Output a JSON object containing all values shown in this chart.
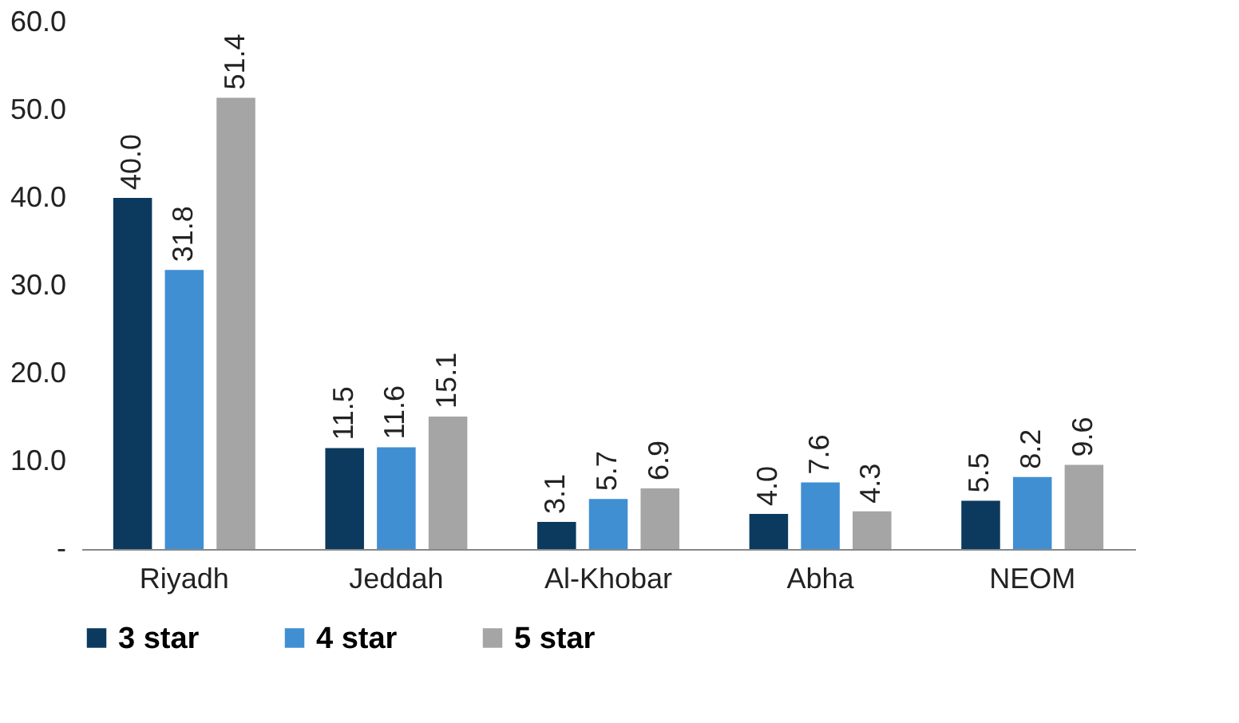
{
  "chart_data": {
    "type": "bar",
    "categories": [
      "Riyadh",
      "Jeddah",
      "Al-Khobar",
      "Abha",
      "NEOM"
    ],
    "series": [
      {
        "name": "3 star",
        "color": "#0b3a5e",
        "values": [
          40.0,
          11.5,
          3.1,
          4.0,
          5.5
        ]
      },
      {
        "name": "4 star",
        "color": "#418fd3",
        "values": [
          31.8,
          11.6,
          5.7,
          7.6,
          8.2
        ]
      },
      {
        "name": "5 star",
        "color": "#a5a5a5",
        "values": [
          51.4,
          15.1,
          6.9,
          4.3,
          9.6
        ]
      }
    ],
    "ylim": [
      0,
      60
    ],
    "yticks": [
      {
        "value": 0,
        "label": "-"
      },
      {
        "value": 10,
        "label": "10.0"
      },
      {
        "value": 20,
        "label": "20.0"
      },
      {
        "value": 30,
        "label": "30.0"
      },
      {
        "value": 40,
        "label": "40.0"
      },
      {
        "value": 50,
        "label": "50.0"
      },
      {
        "value": 60,
        "label": "60.0"
      }
    ],
    "value_labels": [
      [
        "40.0",
        "11.5",
        "3.1",
        "4.0",
        "5.5"
      ],
      [
        "31.8",
        "11.6",
        "5.7",
        "7.6",
        "8.2"
      ],
      [
        "51.4",
        "15.1",
        "6.9",
        "4.3",
        "9.6"
      ]
    ],
    "grid": false,
    "legend": "bottom"
  }
}
